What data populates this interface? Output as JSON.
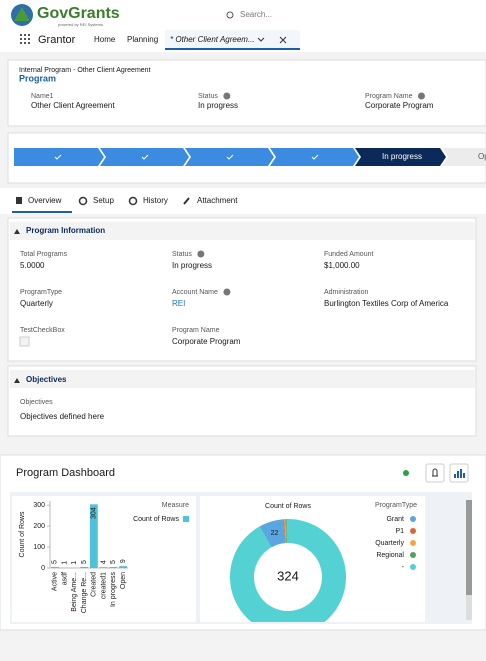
{
  "header": {
    "logo": "GovGrants",
    "tagline": "powered by REI Systems",
    "search": "Search...",
    "app": "Grantor",
    "nav": [
      "Home",
      "Planning"
    ],
    "tab": "* Other Client Agreem..."
  },
  "record": {
    "breadcrumb": "Internal Program - Other Client Agreement",
    "title": "Program",
    "fields": [
      {
        "label": "Name1",
        "value": "Other Client Agreement"
      },
      {
        "label": "Status",
        "value": "In progress",
        "info": true
      },
      {
        "label": "Program Name",
        "value": "Corporate Program",
        "info": true
      }
    ]
  },
  "path": {
    "current": "In progress",
    "next": "Op"
  },
  "tabs": [
    "Overview",
    "Setup",
    "History",
    "Attachment"
  ],
  "program_information": {
    "title": "Program Information",
    "fields": [
      {
        "label": "Total Programs",
        "value": "5.0000"
      },
      {
        "label": "Status",
        "value": "In progress",
        "info": true
      },
      {
        "label": "Funded Amount",
        "value": "$1,000.00"
      },
      {
        "label": "ProgramType",
        "value": "Quarterly"
      },
      {
        "label": "Account Name",
        "value": "REI",
        "info": true,
        "link": true
      },
      {
        "label": "Administration",
        "value": "Burlington Textiles Corp of America"
      },
      {
        "label": "TestCheckBox",
        "checkbox": true
      },
      {
        "label": "Program Name",
        "value": "Corporate Program"
      }
    ]
  },
  "objectives": {
    "title": "Objectives",
    "label": "Objectives",
    "value": "Objectives defined here"
  },
  "dashboard": {
    "title": "Program Dashboard"
  },
  "chart_data": [
    {
      "type": "bar",
      "y_label": "Count of Rows",
      "legend_title": "Measure",
      "categories": [
        "Active",
        "asdf",
        "Being Ame...",
        "Change Re...",
        "Created",
        "created1",
        "In progress",
        "Open"
      ],
      "series": [
        {
          "name": "Count of Rows",
          "color": "#4fc1d8",
          "values": [
            5,
            1,
            1,
            5,
            304,
            4,
            5,
            9
          ]
        }
      ],
      "ylim": [
        0,
        320
      ],
      "yticks": [
        0,
        100,
        200,
        300
      ]
    },
    {
      "type": "pie",
      "title": "Count of Rows",
      "legend_title": "ProgramType",
      "total": 324,
      "categories": [
        "Grant",
        "P1",
        "Quarterly",
        "Regional",
        "-"
      ],
      "values": [
        22,
        1,
        1,
        1,
        299
      ],
      "colors": [
        "#5aa6e0",
        "#e0643a",
        "#f2a93b",
        "#4ea264",
        "#54d1d3"
      ]
    }
  ]
}
